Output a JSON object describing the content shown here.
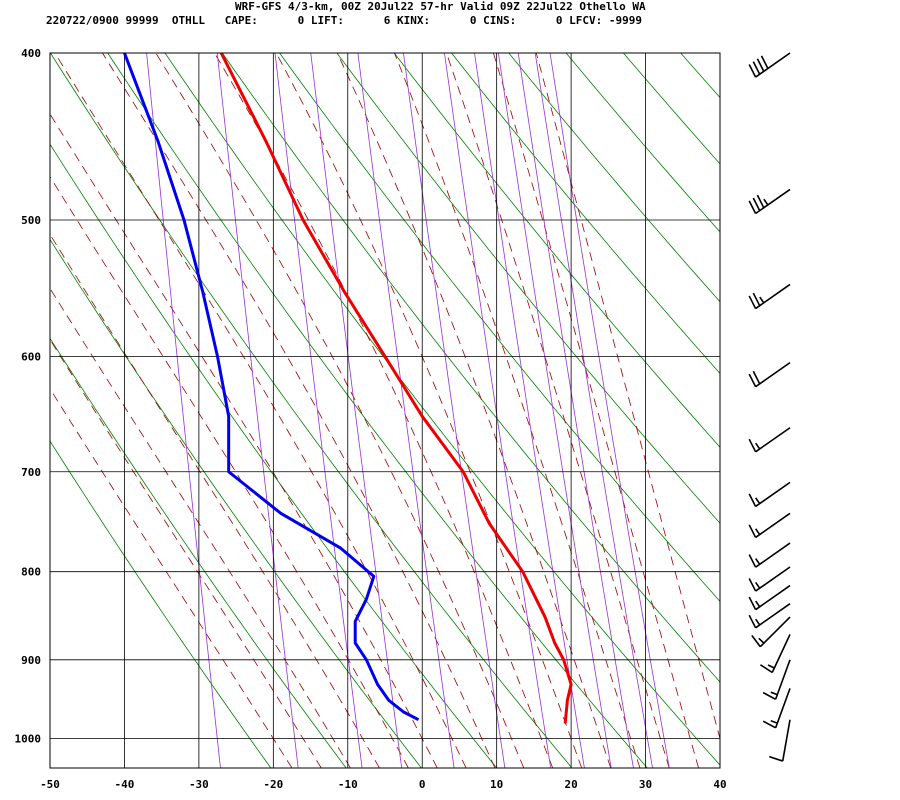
{
  "header": {
    "line1": "WRF-GFS 4/3-km, 00Z 20Jul22 57-hr Valid 09Z 22Jul22 Othello WA",
    "line2": "220722/0900 99999  OTHLL   CAPE:      0 LIFT:      6 KINX:      0 CINS:      0 LFCV: -9999"
  },
  "colors": {
    "temperature": "#ee0000",
    "dewpoint": "#0000ee",
    "isotherm": "#000000",
    "isobar": "#000000",
    "dry_adiabat": "#008000",
    "moist_adiabat": "#a00000",
    "mixing_ratio": "#9933cc"
  },
  "chart_data": {
    "type": "line",
    "subtype": "skew-t log-p sounding",
    "xlim": [
      -50,
      40
    ],
    "ylim": [
      1040,
      400
    ],
    "y_scale": "log",
    "x_ticks": [
      -50,
      -40,
      -30,
      -20,
      -10,
      0,
      10,
      20,
      30,
      40
    ],
    "x_tick_labels": [
      "-50",
      "-40",
      "-30",
      "-20",
      "-10",
      "0",
      "10",
      "20",
      "30",
      "40"
    ],
    "y_ticks": [
      400,
      500,
      600,
      700,
      800,
      900,
      1000
    ],
    "y_tick_labels": [
      "400",
      "500",
      "600",
      "700",
      "800",
      "900",
      "1000"
    ],
    "grid": true,
    "isotherms_skewed": true,
    "series": [
      {
        "key": "temperature",
        "points": [
          [
            400,
            -27
          ],
          [
            450,
            -21
          ],
          [
            500,
            -16
          ],
          [
            550,
            -10.5
          ],
          [
            600,
            -5
          ],
          [
            650,
            0
          ],
          [
            700,
            5.5
          ],
          [
            750,
            9
          ],
          [
            800,
            13.5
          ],
          [
            850,
            16.5
          ],
          [
            880,
            17.8
          ],
          [
            900,
            19
          ],
          [
            930,
            20
          ],
          [
            950,
            19.5
          ],
          [
            970,
            19.3
          ],
          [
            980,
            19.2
          ]
        ]
      },
      {
        "key": "dewpoint",
        "points": [
          [
            400,
            -40
          ],
          [
            450,
            -35.5
          ],
          [
            500,
            -32
          ],
          [
            550,
            -29.5
          ],
          [
            600,
            -27.5
          ],
          [
            650,
            -26
          ],
          [
            700,
            -26
          ],
          [
            740,
            -19
          ],
          [
            775,
            -11
          ],
          [
            805,
            -6.5
          ],
          [
            830,
            -7.5
          ],
          [
            855,
            -9
          ],
          [
            880,
            -9
          ],
          [
            900,
            -7.5
          ],
          [
            930,
            -6
          ],
          [
            950,
            -4.5
          ],
          [
            965,
            -2.5
          ],
          [
            975,
            -0.5
          ]
        ]
      }
    ],
    "wind_barbs": [
      {
        "p": 400,
        "dir": 235,
        "spd": 40
      },
      {
        "p": 480,
        "dir": 235,
        "spd": 35
      },
      {
        "p": 545,
        "dir": 235,
        "spd": 25
      },
      {
        "p": 605,
        "dir": 235,
        "spd": 20
      },
      {
        "p": 660,
        "dir": 235,
        "spd": 15
      },
      {
        "p": 710,
        "dir": 235,
        "spd": 15
      },
      {
        "p": 740,
        "dir": 235,
        "spd": 15
      },
      {
        "p": 770,
        "dir": 235,
        "spd": 15
      },
      {
        "p": 795,
        "dir": 235,
        "spd": 15
      },
      {
        "p": 815,
        "dir": 235,
        "spd": 15
      },
      {
        "p": 835,
        "dir": 235,
        "spd": 15
      },
      {
        "p": 850,
        "dir": 225,
        "spd": 15
      },
      {
        "p": 870,
        "dir": 205,
        "spd": 15
      },
      {
        "p": 900,
        "dir": 200,
        "spd": 15
      },
      {
        "p": 935,
        "dir": 200,
        "spd": 15
      },
      {
        "p": 975,
        "dir": 190,
        "spd": 10
      }
    ]
  }
}
